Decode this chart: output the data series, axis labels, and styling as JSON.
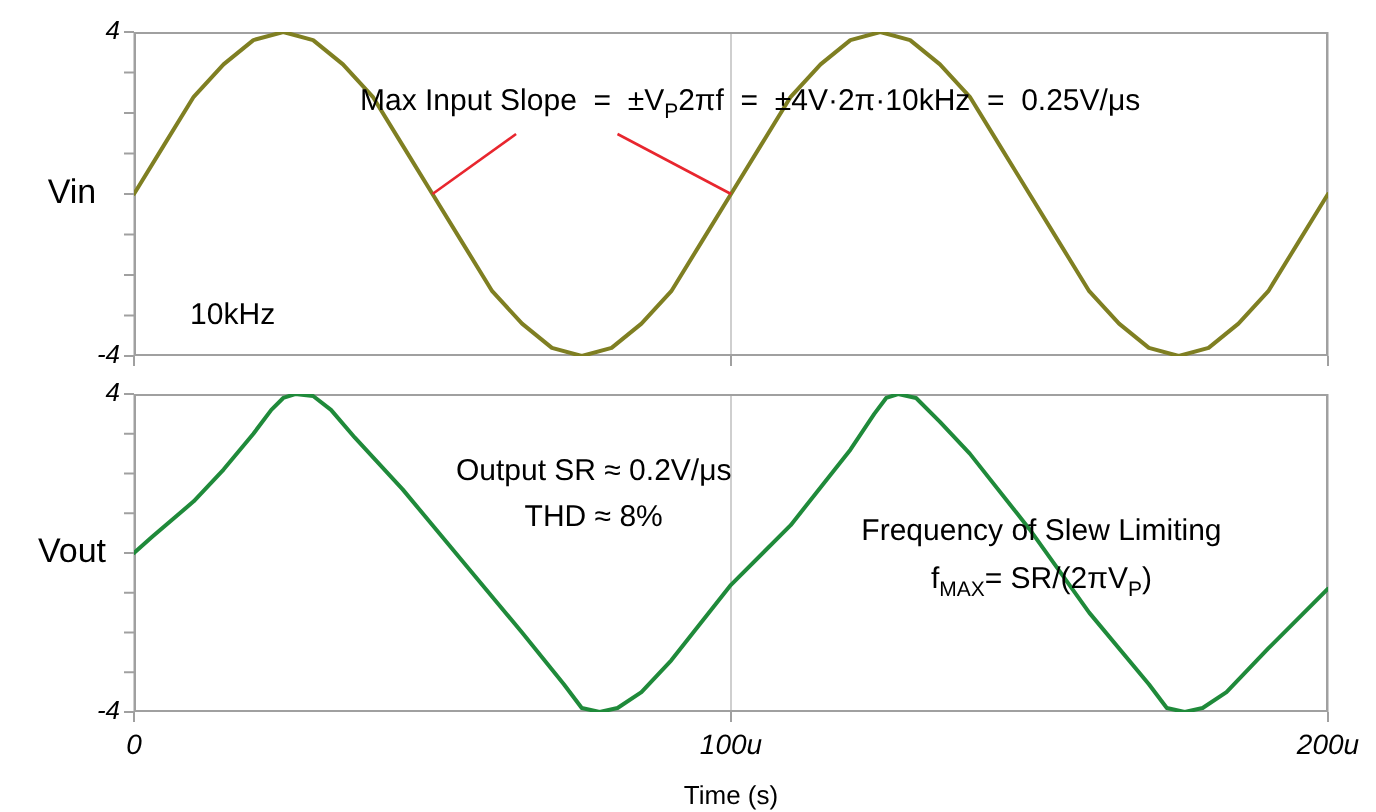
{
  "chart_data": [
    {
      "type": "line",
      "ylabel": "Vin",
      "x": [
        0,
        5,
        10,
        15,
        20,
        25,
        30,
        35,
        40,
        45,
        50,
        55,
        60,
        65,
        70,
        75,
        80,
        85,
        90,
        95,
        100,
        105,
        110,
        115,
        120,
        125,
        130,
        135,
        140,
        145,
        150,
        155,
        160,
        165,
        170,
        175,
        180,
        185,
        190,
        195,
        200
      ],
      "series": [
        {
          "color": "#7f7f22",
          "values": [
            0,
            1.2,
            2.4,
            3.2,
            3.8,
            4,
            3.8,
            3.2,
            2.4,
            1.2,
            0,
            -1.2,
            -2.4,
            -3.2,
            -3.8,
            -4,
            -3.8,
            -3.2,
            -2.4,
            -1.2,
            0,
            1.2,
            2.4,
            3.2,
            3.8,
            4,
            3.8,
            3.2,
            2.4,
            1.2,
            0,
            -1.2,
            -2.4,
            -3.2,
            -3.8,
            -4,
            -3.8,
            -3.2,
            -2.4,
            -1.2,
            0
          ]
        }
      ],
      "xlim": [
        0,
        200
      ],
      "xticks": [
        {
          "value": 0,
          "label": null
        },
        {
          "value": 100,
          "label": null
        },
        {
          "value": 200,
          "label": null
        }
      ],
      "ylim": [
        -4,
        4
      ],
      "yticks": [
        {
          "value": -4,
          "label": "-4"
        },
        {
          "value": -3,
          "label": null
        },
        {
          "value": -2,
          "label": null
        },
        {
          "value": -1,
          "label": null
        },
        {
          "value": 0,
          "label": null
        },
        {
          "value": 1,
          "label": null
        },
        {
          "value": 2,
          "label": null
        },
        {
          "value": 3,
          "label": null
        },
        {
          "value": 4,
          "label": "4"
        }
      ],
      "grid": "x",
      "tick_labels": "y",
      "marker": "none",
      "line_style": "solid",
      "annotations": [
        {
          "text": "Max Input Slope  =  ±V$_{P}$2πf  =  ±4V·2π·10kHz  =  0.25V/μs",
          "x": 100,
          "y": 0
        },
        "10kHz"
      ]
    },
    {
      "type": "line",
      "ylabel": "Vout",
      "xlabel": "Time (s)",
      "x": [
        0,
        3,
        10,
        15,
        20,
        23,
        25,
        27,
        30,
        33,
        37,
        45,
        55,
        65,
        72,
        75,
        78,
        81,
        85,
        90,
        100,
        110,
        120,
        124,
        126,
        128,
        131,
        135,
        140,
        150,
        160,
        170,
        173,
        176,
        179,
        183,
        190,
        200
      ],
      "series": [
        {
          "color": "#1f8a3a",
          "values": [
            0,
            0.4,
            1.3,
            2.1,
            3.0,
            3.6,
            3.9,
            4.0,
            3.95,
            3.6,
            2.9,
            1.6,
            -0.2,
            -2.0,
            -3.3,
            -3.9,
            -4.0,
            -3.9,
            -3.5,
            -2.7,
            -0.8,
            0.7,
            2.6,
            3.5,
            3.9,
            4.0,
            3.9,
            3.3,
            2.5,
            0.6,
            -1.5,
            -3.3,
            -3.9,
            -4.0,
            -3.9,
            -3.5,
            -2.4,
            -0.9
          ]
        }
      ],
      "xlim": [
        0,
        200
      ],
      "xticks": [
        0,
        {
          "value": 100,
          "label": "100u"
        },
        {
          "value": 200,
          "label": "200u"
        }
      ],
      "ylim": [
        -4,
        4
      ],
      "yticks": [
        {
          "value": -4,
          "label": "-4"
        },
        {
          "value": -3,
          "label": null
        },
        {
          "value": -2,
          "label": null
        },
        {
          "value": -1,
          "label": null
        },
        {
          "value": 0,
          "label": null
        },
        {
          "value": 1,
          "label": null
        },
        {
          "value": 2,
          "label": null
        },
        {
          "value": 3,
          "label": null
        },
        {
          "value": 4,
          "label": "4"
        }
      ],
      "grid": "x",
      "marker": "none",
      "line_style": "solid",
      "annotations": [
        "Output SR ≈ 0.2V/μs",
        "THD ≈ 8%",
        "Frequency of Slew Limiting",
        "f$_{MAX}$= SR/(2πV$_{P}$)"
      ]
    }
  ]
}
